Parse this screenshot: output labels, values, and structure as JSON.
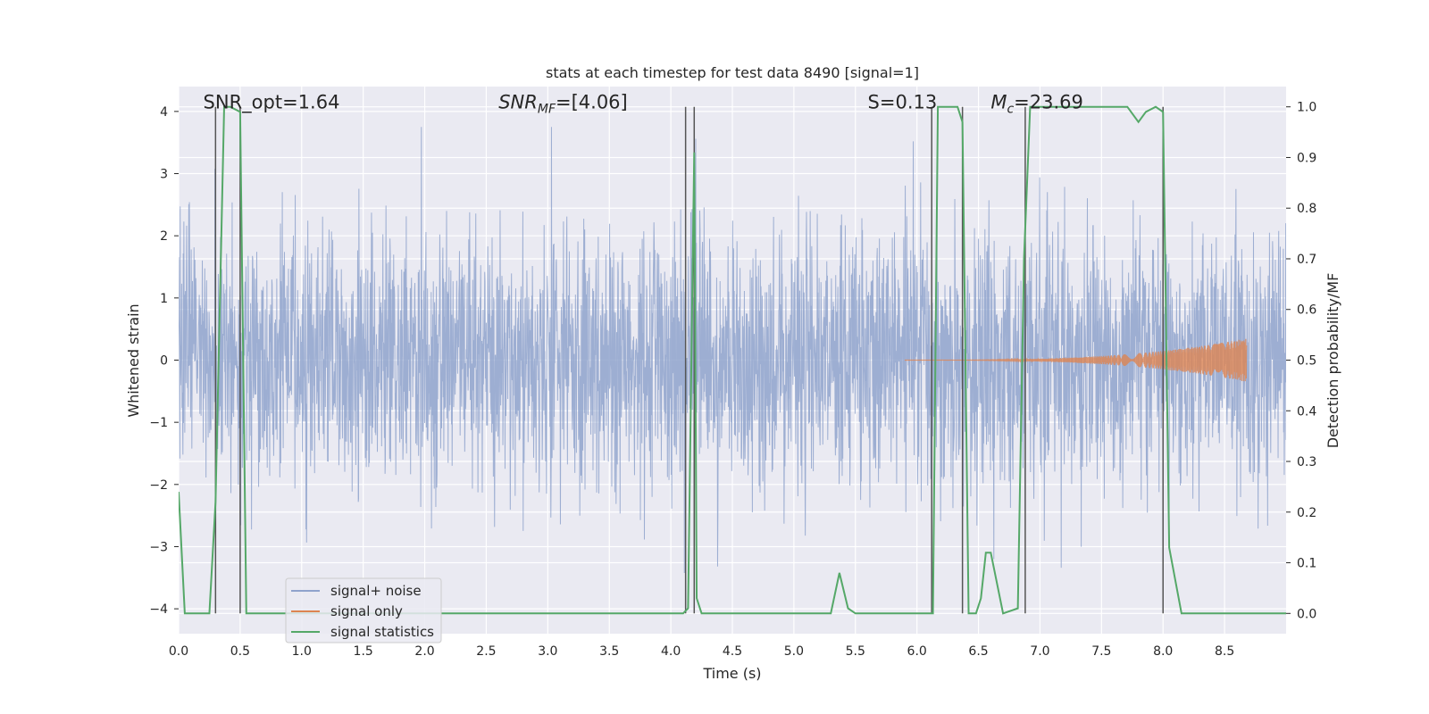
{
  "chart_data": {
    "type": "line",
    "title": "stats at each timestep for test data 8490 [signal=1]",
    "xlabel": "Time (s)",
    "ylabel": "Whitened strain",
    "ylabel_right": "Detection probability/MF",
    "xlim": [
      0.0,
      9.0
    ],
    "ylim": [
      -4.4,
      4.4
    ],
    "ylim_right": [
      -0.04,
      1.04
    ],
    "xticks": [
      0.0,
      0.5,
      1.0,
      1.5,
      2.0,
      2.5,
      3.0,
      3.5,
      4.0,
      4.5,
      5.0,
      5.5,
      6.0,
      6.5,
      7.0,
      7.5,
      8.0,
      8.5
    ],
    "xtick_labels": [
      "0.0",
      "0.5",
      "1.0",
      "1.5",
      "2.0",
      "2.5",
      "3.0",
      "3.5",
      "4.0",
      "4.5",
      "5.0",
      "5.5",
      "6.0",
      "6.5",
      "7.0",
      "7.5",
      "8.0",
      "8.5"
    ],
    "yticks": [
      -4,
      -3,
      -2,
      -1,
      0,
      1,
      2,
      3,
      4
    ],
    "ytick_labels": [
      "−4",
      "−3",
      "−2",
      "−1",
      "0",
      "1",
      "2",
      "3",
      "4"
    ],
    "yticks_right": [
      0.0,
      0.1,
      0.2,
      0.3,
      0.4,
      0.5,
      0.6,
      0.7,
      0.8,
      0.9,
      1.0
    ],
    "ytick_labels_right": [
      "0.0",
      "0.1",
      "0.2",
      "0.3",
      "0.4",
      "0.5",
      "0.6",
      "0.7",
      "0.8",
      "0.9",
      "1.0"
    ],
    "annotations": [
      {
        "text": "SNR_opt=1.64",
        "x": 0.2,
        "y": 4.05
      },
      {
        "text": "SNR_MF=[4.06]",
        "x": 2.6,
        "y": 4.05
      },
      {
        "text": "S=0.13",
        "x": 5.6,
        "y": 4.05
      },
      {
        "text": "M_c=23.69",
        "x": 6.6,
        "y": 4.05
      }
    ],
    "legend": {
      "location": "lower-left",
      "entries": [
        "signal+ noise",
        "signal only",
        "signal statistics"
      ]
    },
    "series": [
      {
        "name": "signal+ noise",
        "color": "#8fa3cc",
        "kind": "noise",
        "duration": 9.0,
        "typical_amplitude": 1.6,
        "peak_amplitude": 3.75
      },
      {
        "name": "signal only",
        "color": "#dd8452",
        "kind": "chirp",
        "start": 5.9,
        "end": 8.68,
        "peak_amplitude": 0.35
      },
      {
        "name": "signal statistics",
        "color": "#55a868",
        "axis": "right",
        "x": [
          0.0,
          0.05,
          0.25,
          0.3,
          0.37,
          0.42,
          0.5,
          0.55,
          4.1,
          4.14,
          4.17,
          4.19,
          4.21,
          4.25,
          5.3,
          5.37,
          5.44,
          5.5,
          6.13,
          6.17,
          6.33,
          6.37,
          6.42,
          6.48,
          6.52,
          6.56,
          6.6,
          6.7,
          6.82,
          6.87,
          6.92,
          7.55,
          7.71,
          7.8,
          7.86,
          7.94,
          8.0,
          8.05,
          8.15,
          8.4,
          8.6,
          9.0
        ],
        "y": [
          0.24,
          0.0,
          0.0,
          0.22,
          1.0,
          1.0,
          0.99,
          0.0,
          0.0,
          0.01,
          0.55,
          0.91,
          0.03,
          0.0,
          0.0,
          0.08,
          0.01,
          0.0,
          0.0,
          1.0,
          1.0,
          0.97,
          0.0,
          0.0,
          0.03,
          0.12,
          0.12,
          0.0,
          0.01,
          0.7,
          1.0,
          1.0,
          1.0,
          0.97,
          0.99,
          1.0,
          0.99,
          0.13,
          0.0,
          0.0,
          0.0,
          0.0
        ]
      }
    ],
    "vertical_lines": [
      0.3,
      0.5,
      4.12,
      4.19,
      6.12,
      6.37,
      6.88,
      8.0
    ]
  }
}
